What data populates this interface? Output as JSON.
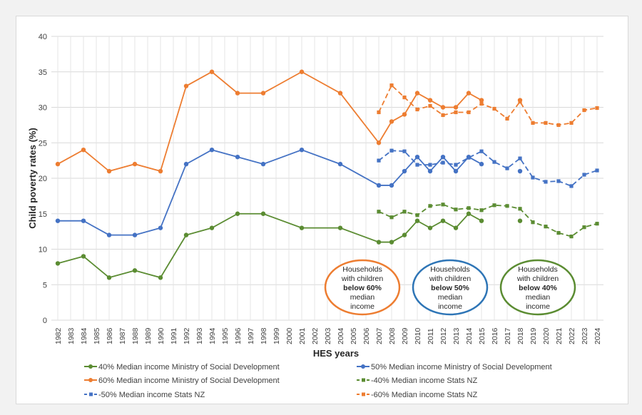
{
  "chart_data": {
    "type": "line",
    "xlabel": "HES years",
    "ylabel": "Child poverty rates (%)",
    "ylim": [
      0,
      40
    ],
    "yticks": [
      0,
      5,
      10,
      15,
      20,
      25,
      30,
      35,
      40
    ],
    "grid": true,
    "legend_placement": "bottom",
    "categories": [
      1982,
      1983,
      1984,
      1985,
      1986,
      1987,
      1988,
      1989,
      1990,
      1991,
      1992,
      1993,
      1994,
      1995,
      1996,
      1997,
      1998,
      1999,
      2000,
      2001,
      2002,
      2003,
      2004,
      2005,
      2006,
      2007,
      2008,
      2009,
      2010,
      2011,
      2012,
      2013,
      2014,
      2015,
      2016,
      2017,
      2018,
      2019,
      2020,
      2021,
      2022,
      2023,
      2024
    ],
    "series": [
      {
        "name": "40% Median income Ministry of Social Development",
        "color": "#5b8c32",
        "style": "solid",
        "marker": "circle",
        "x": [
          1982,
          1984,
          1986,
          1988,
          1990,
          1992,
          1994,
          1996,
          1998,
          2001,
          2004,
          2007,
          2008,
          2009,
          2010,
          2011,
          2012,
          2013,
          2014,
          2015,
          2018
        ],
        "y": [
          8,
          9,
          6,
          7,
          6,
          12,
          13,
          15,
          15,
          13,
          13,
          11,
          11,
          12,
          14,
          13,
          14,
          13,
          15,
          14,
          14
        ]
      },
      {
        "name": "50% Median income Ministry of Social Development",
        "color": "#4472c4",
        "style": "solid",
        "marker": "circle",
        "x": [
          1982,
          1984,
          1986,
          1988,
          1990,
          1992,
          1994,
          1996,
          1998,
          2001,
          2004,
          2007,
          2008,
          2009,
          2010,
          2011,
          2012,
          2013,
          2014,
          2015,
          2018
        ],
        "y": [
          14,
          14,
          12,
          12,
          13,
          22,
          24,
          23,
          22,
          24,
          22,
          19,
          19,
          21,
          23,
          21,
          23,
          21,
          23,
          22,
          21
        ]
      },
      {
        "name": "60% Median income Ministry of Social Development",
        "color": "#ed7d31",
        "style": "solid",
        "marker": "circle",
        "x": [
          1982,
          1984,
          1986,
          1988,
          1990,
          1992,
          1994,
          1996,
          1998,
          2001,
          2004,
          2007,
          2008,
          2009,
          2010,
          2011,
          2012,
          2013,
          2014,
          2015,
          2018
        ],
        "y": [
          22,
          24,
          21,
          22,
          21,
          33,
          35,
          32,
          32,
          35,
          32,
          25,
          28,
          29,
          32,
          31,
          30,
          30,
          32,
          31,
          31
        ]
      },
      {
        "name": "-40% Median income Stats NZ",
        "color": "#5b8c32",
        "style": "dashed",
        "marker": "square",
        "x": [
          2007,
          2008,
          2009,
          2010,
          2011,
          2012,
          2013,
          2014,
          2015,
          2016,
          2017,
          2018,
          2019,
          2020,
          2021,
          2022,
          2023,
          2024
        ],
        "y": [
          15.3,
          14.5,
          15.3,
          14.8,
          16.1,
          16.3,
          15.6,
          15.8,
          15.5,
          16.2,
          16.1,
          15.7,
          13.8,
          13.2,
          12.3,
          11.8,
          13.1,
          13.6
        ]
      },
      {
        "name": "-50% Median income Stats NZ",
        "color": "#4472c4",
        "style": "dashed",
        "marker": "square",
        "x": [
          2007,
          2008,
          2009,
          2010,
          2011,
          2012,
          2013,
          2014,
          2015,
          2016,
          2017,
          2018,
          2019,
          2020,
          2021,
          2022,
          2023,
          2024
        ],
        "y": [
          22.5,
          23.9,
          23.8,
          21.9,
          21.9,
          22.2,
          21.9,
          22.9,
          23.8,
          22.3,
          21.4,
          22.8,
          20.1,
          19.5,
          19.6,
          18.9,
          20.5,
          21.1
        ]
      },
      {
        "name": "-60% Median income Stats NZ",
        "color": "#ed7d31",
        "style": "dashed",
        "marker": "square",
        "x": [
          2007,
          2008,
          2009,
          2010,
          2011,
          2012,
          2013,
          2014,
          2015,
          2016,
          2017,
          2018,
          2019,
          2020,
          2021,
          2022,
          2023,
          2024
        ],
        "y": [
          29.3,
          33.1,
          31.4,
          29.7,
          30.2,
          28.9,
          29.3,
          29.3,
          30.5,
          29.8,
          28.4,
          30.8,
          27.8,
          27.8,
          27.5,
          27.8,
          29.6,
          29.9
        ]
      }
    ],
    "annotations": [
      {
        "lines": [
          "Households",
          "with children"
        ],
        "bold": "below 60%",
        "after": [
          "median",
          "income"
        ],
        "color": "#ed7d31"
      },
      {
        "lines": [
          "Households",
          "with children"
        ],
        "bold": "below 50%",
        "after": [
          "median",
          "income"
        ],
        "color": "#2e75b6"
      },
      {
        "lines": [
          "Households",
          "with children"
        ],
        "bold": "below 40%",
        "after": [
          "median",
          "income"
        ],
        "color": "#5b8c32"
      }
    ]
  }
}
